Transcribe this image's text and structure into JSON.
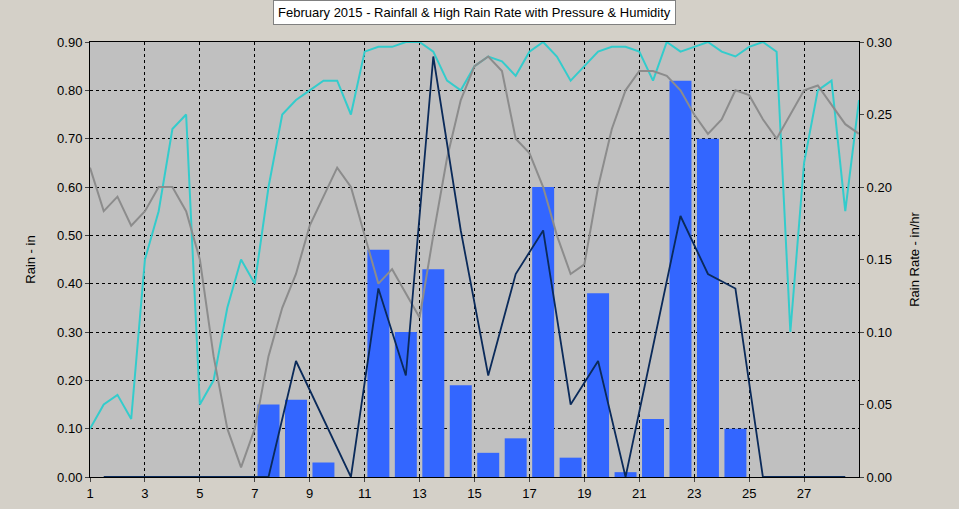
{
  "chart_data": {
    "type": "bar",
    "title": "February 2015 - Rainfall & High Rain Rate with Pressure & Humidity",
    "y_label": "Rain - in",
    "y2_label": "Rain Rate - in/hr",
    "grid": true,
    "xlim": [
      1,
      29
    ],
    "xticks": [
      1,
      3,
      5,
      7,
      9,
      11,
      13,
      15,
      17,
      19,
      21,
      23,
      25,
      27
    ],
    "ylim": [
      0,
      0.9
    ],
    "yticks": [
      {
        "value": 0,
        "label": "0.00"
      },
      {
        "value": 0.1,
        "label": "0.10"
      },
      {
        "value": 0.2,
        "label": "0.20"
      },
      {
        "value": 0.3,
        "label": "0.30"
      },
      {
        "value": 0.4,
        "label": "0.40"
      },
      {
        "value": 0.5,
        "label": "0.50"
      },
      {
        "value": 0.6,
        "label": "0.60"
      },
      {
        "value": 0.7,
        "label": "0.70"
      },
      {
        "value": 0.8,
        "label": "0.80"
      },
      {
        "value": 0.9,
        "label": "0.90"
      }
    ],
    "y2lim": [
      0,
      0.3
    ],
    "y2ticks": [
      {
        "value": 0,
        "label": "0.00"
      },
      0.05,
      {
        "value": 0.1,
        "label": "0.10"
      },
      0.15,
      {
        "value": 0.2,
        "label": "0.20"
      },
      0.25,
      {
        "value": 0.3,
        "label": "0.30"
      }
    ],
    "series": [
      {
        "type": "line",
        "axis": "y",
        "color": "#33cccc",
        "x": [
          1,
          1.5,
          2,
          2.5,
          3,
          3.5,
          4,
          4.5,
          5,
          5.5,
          6,
          6.5,
          7,
          7.5,
          8,
          8.5,
          9,
          9.5,
          10,
          10.5,
          11,
          11.5,
          12,
          12.5,
          13,
          13.5,
          14,
          14.5,
          15,
          15.5,
          16,
          16.5,
          17,
          17.5,
          18,
          18.5,
          19,
          19.5,
          20,
          20.5,
          21,
          21.5,
          22,
          22.5,
          23,
          23.5,
          24,
          24.5,
          25,
          25.5,
          26,
          26.5,
          27,
          27.5,
          28,
          28.5,
          29
        ],
        "values": [
          0.1,
          0.15,
          0.17,
          0.12,
          0.45,
          0.55,
          0.72,
          0.75,
          0.15,
          0.2,
          0.35,
          0.45,
          0.4,
          0.6,
          0.75,
          0.78,
          0.8,
          0.82,
          0.82,
          0.75,
          0.88,
          0.89,
          0.89,
          0.9,
          0.9,
          0.88,
          0.82,
          0.8,
          0.85,
          0.87,
          0.86,
          0.83,
          0.88,
          0.9,
          0.87,
          0.82,
          0.85,
          0.88,
          0.89,
          0.89,
          0.88,
          0.82,
          0.9,
          0.88,
          0.89,
          0.9,
          0.88,
          0.87,
          0.89,
          0.9,
          0.88,
          0.3,
          0.65,
          0.8,
          0.82,
          0.55,
          0.78
        ]
      },
      {
        "type": "line",
        "axis": "y",
        "color": "#8c8c8c",
        "x": [
          1,
          1.5,
          2,
          2.5,
          3,
          3.5,
          4,
          4.5,
          5,
          5.5,
          6,
          6.5,
          7,
          7.5,
          8,
          8.5,
          9,
          9.5,
          10,
          10.5,
          11,
          11.5,
          12,
          12.5,
          13,
          13.5,
          14,
          14.5,
          15,
          15.5,
          16,
          16.5,
          17,
          17.5,
          18,
          18.5,
          19,
          19.5,
          20,
          20.5,
          21,
          21.5,
          22,
          22.5,
          23,
          23.5,
          24,
          24.5,
          25,
          25.5,
          26,
          26.5,
          27,
          27.5,
          28,
          28.5,
          29
        ],
        "values": [
          0.64,
          0.55,
          0.58,
          0.52,
          0.55,
          0.6,
          0.6,
          0.55,
          0.45,
          0.25,
          0.1,
          0.02,
          0.1,
          0.25,
          0.35,
          0.42,
          0.52,
          0.58,
          0.64,
          0.6,
          0.5,
          0.4,
          0.43,
          0.38,
          0.33,
          0.5,
          0.66,
          0.78,
          0.85,
          0.87,
          0.84,
          0.7,
          0.67,
          0.6,
          0.5,
          0.42,
          0.44,
          0.6,
          0.72,
          0.8,
          0.84,
          0.84,
          0.83,
          0.8,
          0.75,
          0.71,
          0.74,
          0.8,
          0.79,
          0.74,
          0.7,
          0.75,
          0.8,
          0.81,
          0.77,
          0.73,
          0.71
        ]
      },
      {
        "type": "bar",
        "axis": "y",
        "color": "#3366ff",
        "x": [
          1.5,
          2.5,
          3.5,
          4.5,
          5.5,
          6.5,
          7.5,
          8.5,
          9.5,
          10.5,
          11.5,
          12.5,
          13.5,
          14.5,
          15.5,
          16.5,
          17.5,
          18.5,
          19.5,
          20.5,
          21.5,
          22.5,
          23.5,
          24.5,
          25.5,
          26.5,
          27.5,
          28.5
        ],
        "values": [
          0,
          0,
          0,
          0,
          0,
          0,
          0.15,
          0.16,
          0.03,
          0,
          0.47,
          0.3,
          0.43,
          0.19,
          0.05,
          0.08,
          0.6,
          0.04,
          0.38,
          0.01,
          0.12,
          0.82,
          0.7,
          0.1,
          0,
          0,
          0,
          0
        ]
      },
      {
        "type": "line",
        "axis": "y2",
        "color": "#0a2a5a",
        "x": [
          1.5,
          2.5,
          3.5,
          4.5,
          5.5,
          6.5,
          7.5,
          8.5,
          9.5,
          10.5,
          11.5,
          12.5,
          13.5,
          14.5,
          15.5,
          16.5,
          17.5,
          18.5,
          19.5,
          20.5,
          21.5,
          22.5,
          23.5,
          24.5,
          25.5,
          26.5,
          27.5,
          28.5
        ],
        "values": [
          0,
          0,
          0,
          0,
          0,
          0,
          0,
          0.08,
          0.04,
          0,
          0.13,
          0.07,
          0.29,
          0.17,
          0.07,
          0.14,
          0.17,
          0.05,
          0.08,
          0,
          0.09,
          0.18,
          0.14,
          0.13,
          0,
          0,
          0,
          0
        ]
      }
    ]
  }
}
